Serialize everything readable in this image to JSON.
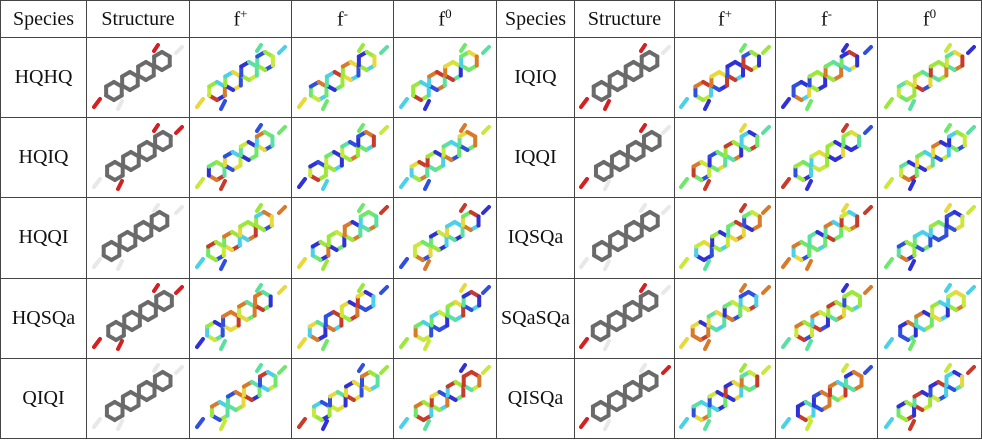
{
  "table": {
    "header": [
      "Species",
      "Structure",
      {
        "base": "f",
        "sup": "+"
      },
      {
        "base": "f",
        "sup": "-"
      },
      {
        "base": "f",
        "sup": "0"
      },
      "Species",
      "Structure",
      {
        "base": "f",
        "sup": "+"
      },
      {
        "base": "f",
        "sup": "-"
      },
      {
        "base": "f",
        "sup": "0"
      }
    ],
    "rows": [
      [
        "HQHQ",
        "IQIQ"
      ],
      [
        "HQIQ",
        "IQQI"
      ],
      [
        "HQQI",
        "IQSQa"
      ],
      [
        "HQSQa",
        "SQaSQa"
      ],
      [
        "QIQI",
        "QISQa"
      ]
    ]
  }
}
